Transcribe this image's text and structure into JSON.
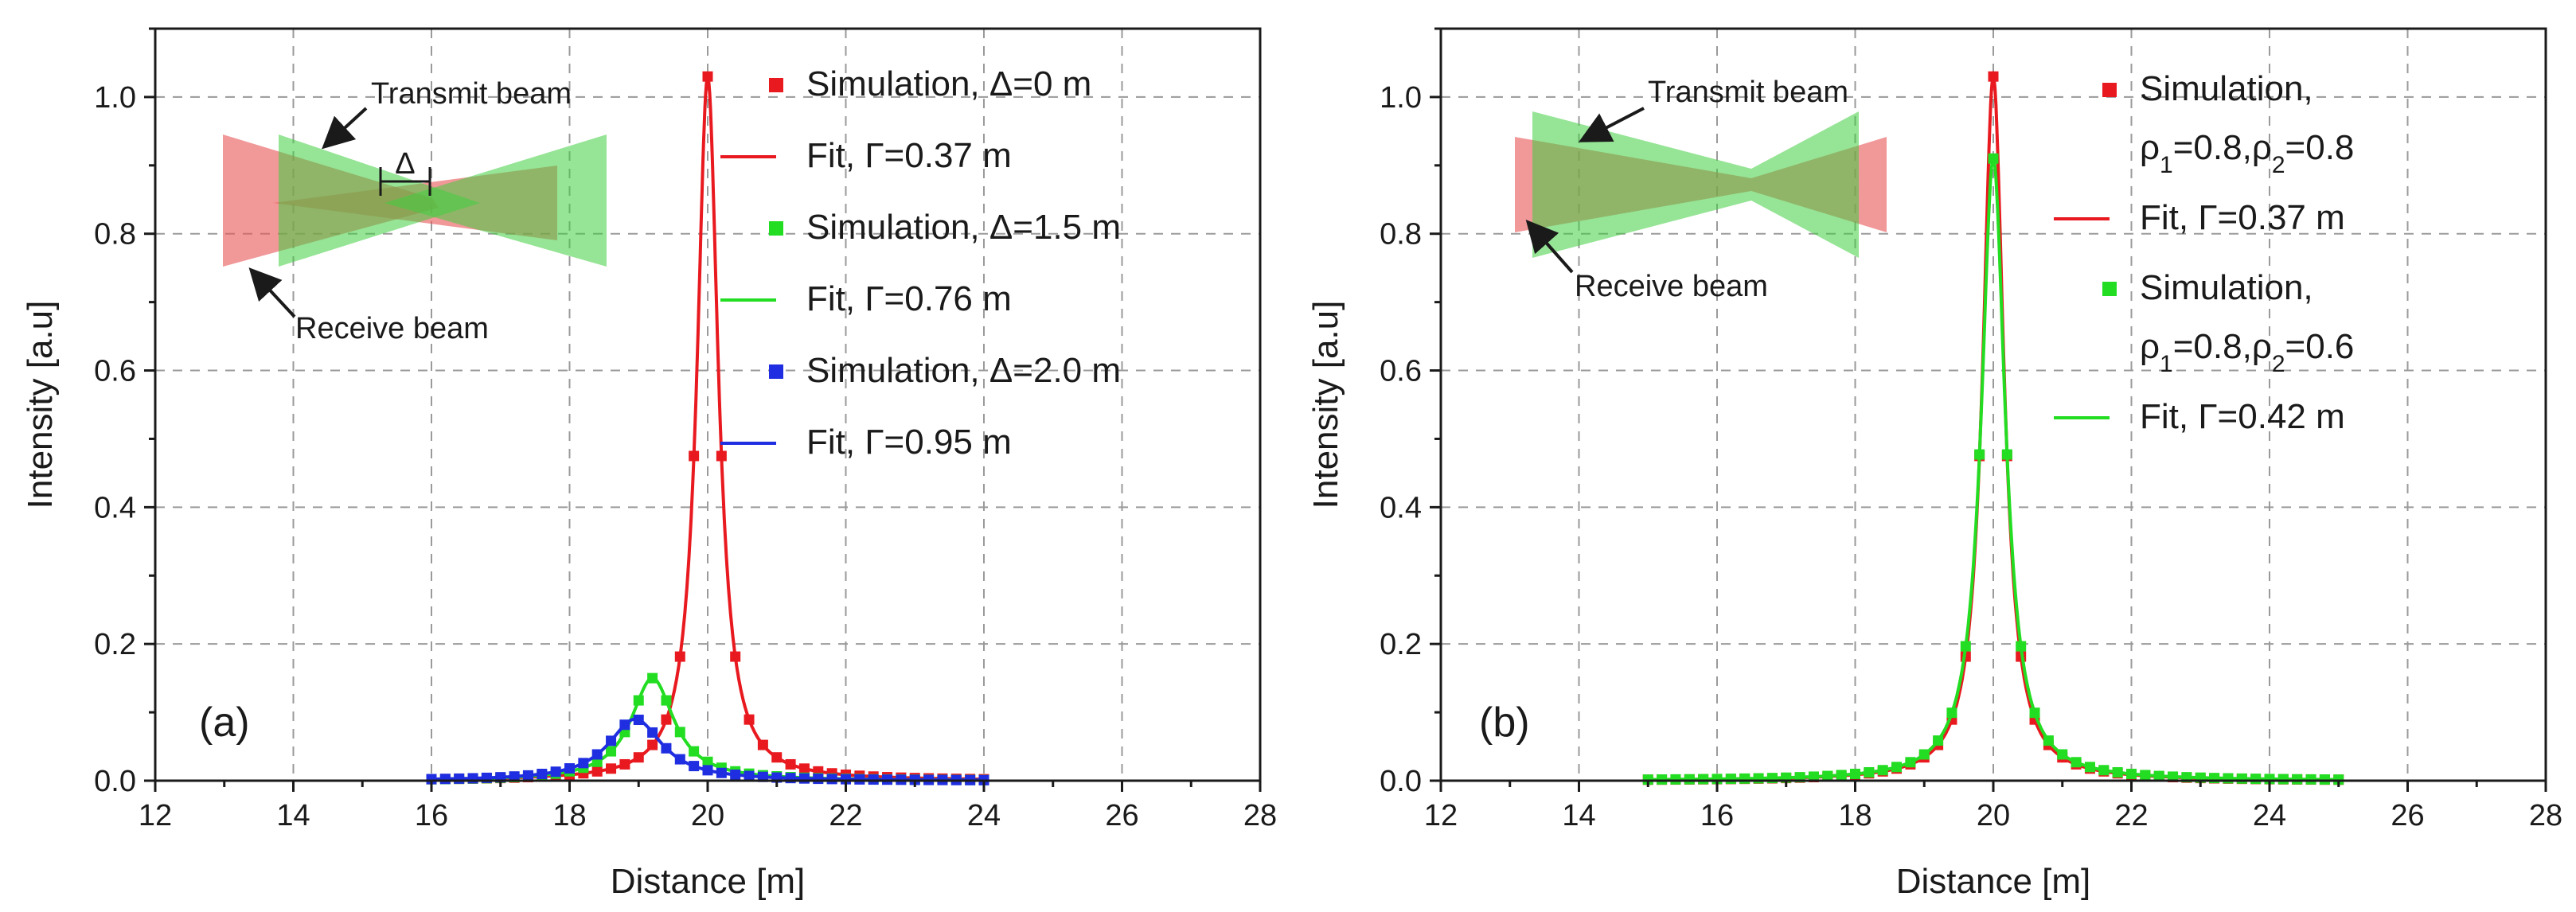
{
  "chart_data": [
    {
      "type": "line",
      "panel_label": "(a)",
      "xlabel": "Distance [m]",
      "ylabel": "Intensity [a.u]",
      "xlim": [
        12,
        28
      ],
      "ylim": [
        0,
        1.1
      ],
      "xticks": [
        12,
        14,
        16,
        18,
        20,
        22,
        24,
        26,
        28
      ],
      "yticks": [
        0.0,
        0.2,
        0.4,
        0.6,
        0.8,
        1.0
      ],
      "xtick_labels": [
        "12",
        "14",
        "16",
        "18",
        "20",
        "22",
        "24",
        "26",
        "28"
      ],
      "ytick_labels": [
        "0.0",
        "0.2",
        "0.4",
        "0.6",
        "0.8",
        "1.0"
      ],
      "grid": true,
      "legend_position": "top-right",
      "series": [
        {
          "name": "Simulation, Δ=0 m",
          "kind": "markers",
          "color": "#e8191f",
          "peak_x": 20.0,
          "peak_y": 1.03,
          "gamma": 0.37,
          "x_range": [
            16,
            24
          ],
          "step": 0.2
        },
        {
          "name": "Fit, Γ=0.37 m",
          "kind": "line",
          "color": "#e8191f",
          "peak_x": 20.0,
          "peak_y": 1.03,
          "gamma": 0.37,
          "x_range": [
            16,
            24
          ]
        },
        {
          "name": "Simulation, Δ=1.5 m",
          "kind": "markers",
          "color": "#22dd22",
          "peak_x": 19.2,
          "peak_y": 0.15,
          "gamma": 0.76,
          "x_range": [
            16,
            24
          ],
          "step": 0.2
        },
        {
          "name": "Fit, Γ=0.76 m",
          "kind": "line",
          "color": "#22dd22",
          "peak_x": 19.2,
          "peak_y": 0.15,
          "gamma": 0.76,
          "x_range": [
            16,
            24
          ]
        },
        {
          "name": "Simulation, Δ=2.0 m",
          "kind": "markers",
          "color": "#1f2ee0",
          "peak_x": 18.95,
          "peak_y": 0.09,
          "gamma": 0.95,
          "x_range": [
            16,
            24
          ],
          "step": 0.2
        },
        {
          "name": "Fit, Γ=0.95 m",
          "kind": "line",
          "color": "#1f2ee0",
          "peak_x": 18.95,
          "peak_y": 0.09,
          "gamma": 0.95,
          "x_range": [
            16,
            24
          ]
        }
      ],
      "legend": [
        {
          "marker": "square",
          "color": "#e8191f",
          "lines": [
            "Simulation, Δ=0 m"
          ]
        },
        {
          "marker": "line",
          "color": "#e8191f",
          "lines": [
            "Fit, Γ=0.37 m"
          ]
        },
        {
          "marker": "square",
          "color": "#22dd22",
          "lines": [
            "Simulation, Δ=1.5 m"
          ]
        },
        {
          "marker": "line",
          "color": "#22dd22",
          "lines": [
            "Fit, Γ=0.76 m"
          ]
        },
        {
          "marker": "square",
          "color": "#1f2ee0",
          "lines": [
            "Simulation, Δ=2.0 m"
          ]
        },
        {
          "marker": "line",
          "color": "#1f2ee0",
          "lines": [
            "Fit, Γ=0.95 m"
          ]
        }
      ],
      "inset": {
        "transmit_label": "Transmit beam",
        "receive_label": "Receive beam",
        "offset_label": "Δ"
      }
    },
    {
      "type": "line",
      "panel_label": "(b)",
      "xlabel": "Distance [m]",
      "ylabel": "Intensity [a.u]",
      "xlim": [
        12,
        28
      ],
      "ylim": [
        0,
        1.1
      ],
      "xticks": [
        12,
        14,
        16,
        18,
        20,
        22,
        24,
        26,
        28
      ],
      "yticks": [
        0.0,
        0.2,
        0.4,
        0.6,
        0.8,
        1.0
      ],
      "xtick_labels": [
        "12",
        "14",
        "16",
        "18",
        "20",
        "22",
        "24",
        "26",
        "28"
      ],
      "ytick_labels": [
        "0.0",
        "0.2",
        "0.4",
        "0.6",
        "0.8",
        "1.0"
      ],
      "grid": true,
      "legend_position": "top-right",
      "series": [
        {
          "name": "Simulation, ρ1=0.8,ρ2=0.8",
          "kind": "markers",
          "color": "#e8191f",
          "peak_x": 20.0,
          "peak_y": 1.03,
          "gamma": 0.37,
          "x_range": [
            15,
            25
          ],
          "step": 0.2
        },
        {
          "name": "Fit, Γ=0.37 m",
          "kind": "line",
          "color": "#e8191f",
          "peak_x": 20.0,
          "peak_y": 1.03,
          "gamma": 0.37,
          "x_range": [
            15,
            25
          ]
        },
        {
          "name": "Simulation, ρ1=0.8,ρ2=0.6",
          "kind": "markers",
          "color": "#22dd22",
          "peak_x": 20.0,
          "peak_y": 0.91,
          "gamma": 0.42,
          "x_range": [
            15,
            25
          ],
          "step": 0.2
        },
        {
          "name": "Fit, Γ=0.42 m",
          "kind": "line",
          "color": "#22dd22",
          "peak_x": 20.0,
          "peak_y": 0.91,
          "gamma": 0.42,
          "x_range": [
            15,
            25
          ]
        }
      ],
      "legend": [
        {
          "marker": "square",
          "color": "#e8191f",
          "lines": [
            "Simulation,",
            "ρ1=0.8,ρ2=0.8"
          ]
        },
        {
          "marker": "line",
          "color": "#e8191f",
          "lines": [
            "Fit, Γ=0.37 m"
          ]
        },
        {
          "marker": "square",
          "color": "#22dd22",
          "lines": [
            "Simulation,",
            "ρ1=0.8,ρ2=0.6"
          ]
        },
        {
          "marker": "line",
          "color": "#22dd22",
          "lines": [
            "Fit, Γ=0.42 m"
          ]
        }
      ],
      "inset": {
        "transmit_label": "Transmit beam",
        "receive_label": "Receive beam"
      }
    }
  ]
}
